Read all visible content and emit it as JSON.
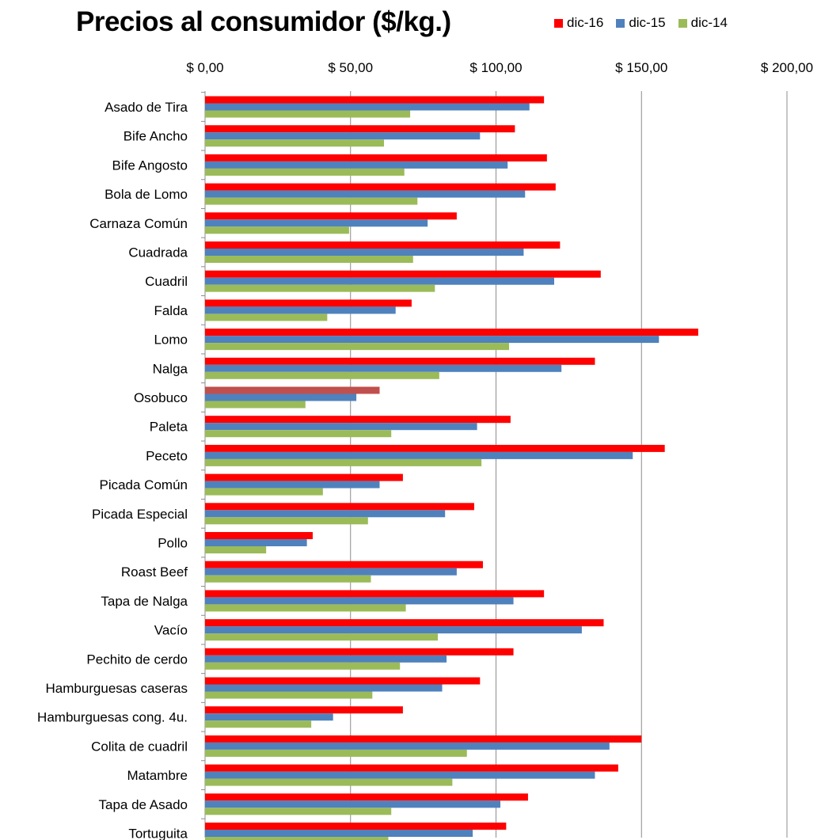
{
  "chart_data": {
    "type": "bar",
    "orientation": "horizontal",
    "title": "Precios al consumidor ($/kg.)",
    "xlabel": "",
    "ylabel": "",
    "xlim": [
      0,
      200
    ],
    "x_ticks": [
      {
        "value": 0,
        "label": "$ 0,00"
      },
      {
        "value": 50,
        "label": "$ 50,00"
      },
      {
        "value": 100,
        "label": "$ 100,00"
      },
      {
        "value": 150,
        "label": "$ 150,00"
      },
      {
        "value": 200,
        "label": "$ 200,00"
      }
    ],
    "x_axis_position": "top",
    "grid": "vertical",
    "legend_position": "top-right",
    "categories": [
      "Asado de Tira",
      "Bife Ancho",
      "Bife Angosto",
      "Bola de Lomo",
      "Carnaza Común",
      "Cuadrada",
      "Cuadril",
      "Falda",
      "Lomo",
      "Nalga",
      "Osobuco",
      "Paleta",
      "Peceto",
      "Picada Común",
      "Picada Especial",
      "Pollo",
      "Roast Beef",
      "Tapa de Nalga",
      "Vacío",
      "Pechito de cerdo",
      "Hamburguesas caseras",
      "Hamburguesas cong. 4u.",
      "Colita de cuadril",
      "Matambre",
      "Tapa de Asado",
      "Tortuguita"
    ],
    "series": [
      {
        "name": "dic-16",
        "color": "#ff0000",
        "values": [
          116.5,
          106.5,
          117.5,
          120.5,
          86.5,
          122,
          136,
          71,
          169.5,
          134,
          60,
          105,
          158,
          68,
          92.5,
          37,
          95.5,
          116.5,
          137,
          106,
          94.5,
          68,
          150,
          142,
          111,
          103.5
        ]
      },
      {
        "name": "dic-15",
        "color": "#4f81bd",
        "values": [
          111.5,
          94.5,
          104,
          110,
          76.5,
          109.5,
          120,
          65.5,
          156,
          122.5,
          52,
          93.5,
          147,
          60,
          82.5,
          35,
          86.5,
          106,
          129.5,
          83,
          81.5,
          44,
          139,
          134,
          101.5,
          92
        ]
      },
      {
        "name": "dic-14",
        "color": "#9bbb59",
        "values": [
          70.5,
          61.5,
          68.5,
          73,
          49.5,
          71.5,
          79,
          42,
          104.5,
          80.5,
          34.5,
          64,
          95,
          40.5,
          56,
          21,
          57,
          69,
          80,
          67,
          57.5,
          36.5,
          90,
          85,
          64,
          63
        ]
      }
    ],
    "highlight": {
      "category": "Osobuco",
      "series": "dic-16",
      "color": "#c0504d"
    }
  }
}
